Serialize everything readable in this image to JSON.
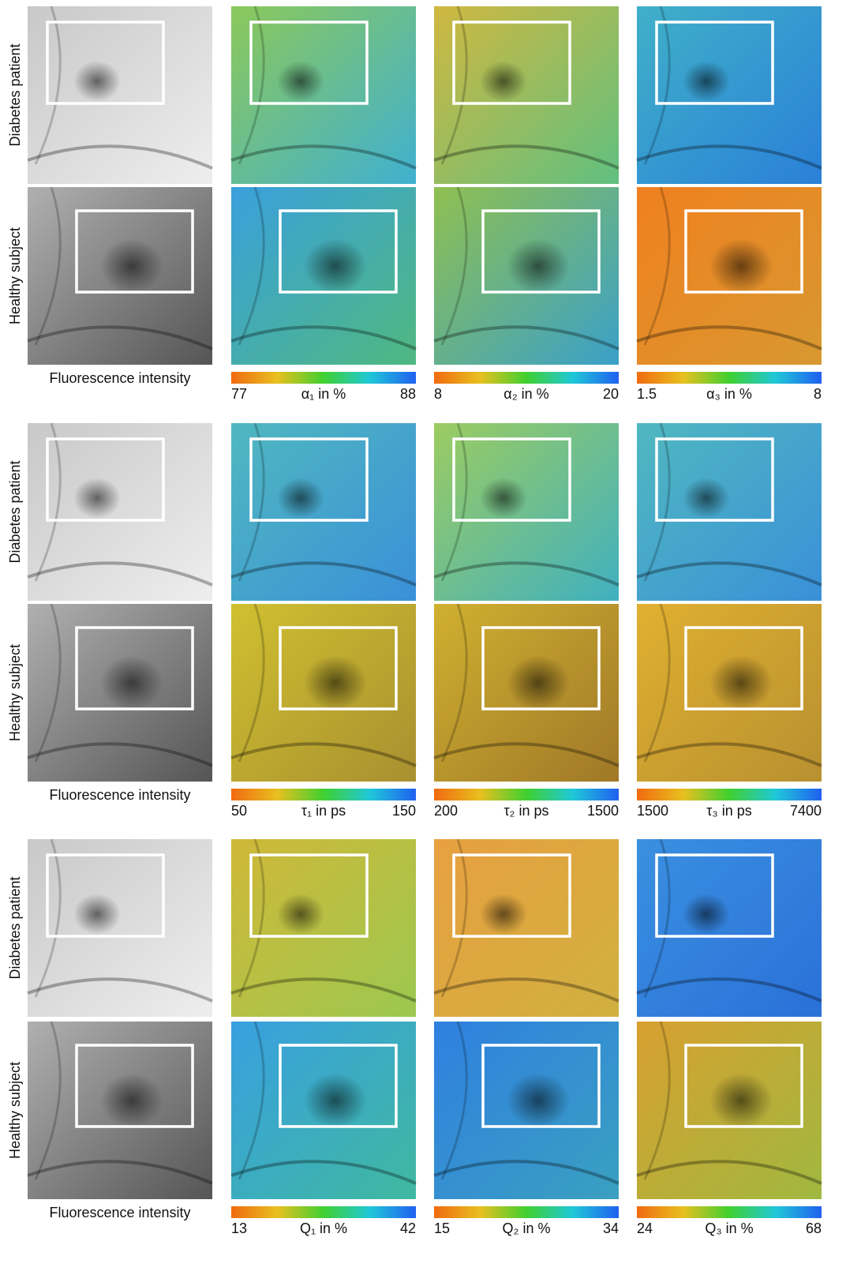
{
  "row_labels": [
    "Diabetes patient",
    "Healthy subject"
  ],
  "intensity_label": "Fluorescence intensity",
  "blocks": [
    {
      "colorbars": [
        {
          "label": "α₁ in %",
          "min": 77,
          "max": 88
        },
        {
          "label": "α₂ in %",
          "min": 8,
          "max": 20
        },
        {
          "label": "α₃ in %",
          "min": 1.5,
          "max": 8
        }
      ]
    },
    {
      "colorbars": [
        {
          "label": "τ₁ in ps",
          "min": 50,
          "max": 150
        },
        {
          "label": "τ₂ in ps",
          "min": 200,
          "max": 1500
        },
        {
          "label": "τ₃ in ps",
          "min": 1500,
          "max": 7400
        }
      ]
    },
    {
      "colorbars": [
        {
          "label": "Q₁ in %",
          "min": 13,
          "max": 42
        },
        {
          "label": "Q₂ in %",
          "min": 15,
          "max": 34
        },
        {
          "label": "Q₃ in %",
          "min": 24,
          "max": 68
        }
      ]
    }
  ]
}
